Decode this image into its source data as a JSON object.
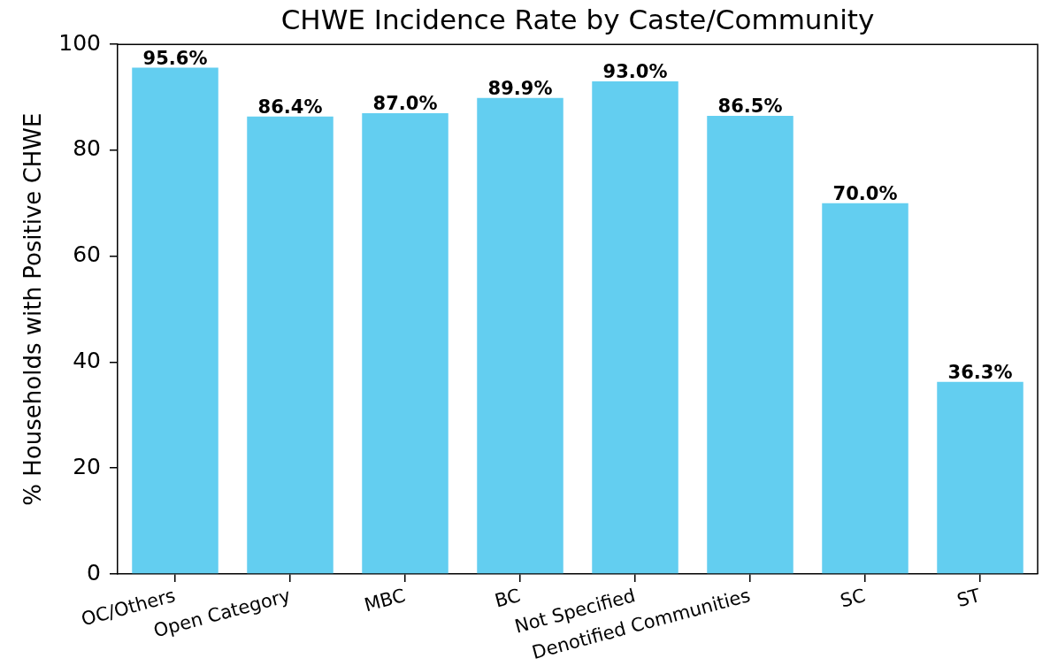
{
  "chart_data": {
    "type": "bar",
    "title": "CHWE Incidence Rate by Caste/Community",
    "ylabel": "% Households with Positive CHWE",
    "categories": [
      "OC/Others",
      "Open Category",
      "MBC",
      "BC",
      "Not Specified",
      "Denotified Communities",
      "SC",
      "ST"
    ],
    "values": [
      95.6,
      86.4,
      87.0,
      89.9,
      93.0,
      86.5,
      70.0,
      36.3
    ],
    "value_labels": [
      "95.6%",
      "86.4%",
      "87.0%",
      "89.9%",
      "93.0%",
      "86.5%",
      "70.0%",
      "36.3%"
    ],
    "color": "#63cef0",
    "ylim": [
      0,
      100
    ],
    "yticks": [
      0,
      20,
      40,
      60,
      80,
      100
    ]
  }
}
